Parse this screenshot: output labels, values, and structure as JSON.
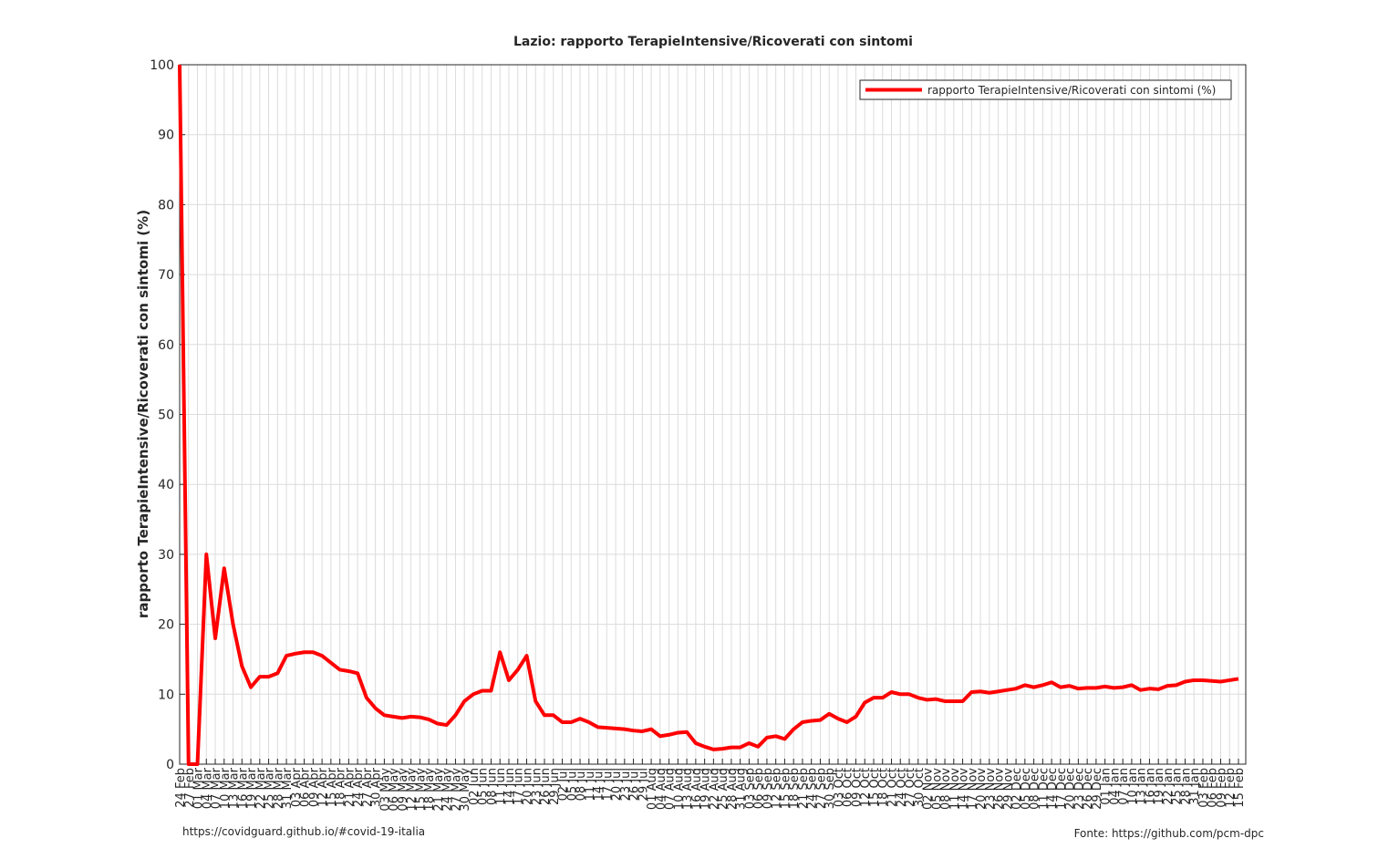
{
  "chart_data": {
    "type": "line",
    "title": "Lazio: rapporto TerapieIntensive/Ricoverati con sintomi",
    "y_label": "rapporto TerapieIntensive/Ricoverati con sintomi (%)",
    "footer_left": "https://covidguard.github.io/#covid-19-italia",
    "footer_right": "Fonte: https://github.com/pcm-dpc",
    "legend_position": "upper right",
    "grid": true,
    "ylim": [
      0,
      100
    ],
    "yticks": [
      0,
      10,
      20,
      30,
      40,
      50,
      60,
      70,
      80,
      90,
      100
    ],
    "categories": [
      "24 Feb",
      "27 Feb",
      "01 Mar",
      "04 Mar",
      "07 Mar",
      "10 Mar",
      "13 Mar",
      "16 Mar",
      "19 Mar",
      "22 Mar",
      "25 Mar",
      "28 Mar",
      "31 Mar",
      "03 Apr",
      "06 Apr",
      "09 Apr",
      "12 Apr",
      "15 Apr",
      "18 Apr",
      "21 Apr",
      "24 Apr",
      "27 Apr",
      "30 Apr",
      "03 May",
      "06 May",
      "09 May",
      "12 May",
      "15 May",
      "18 May",
      "21 May",
      "24 May",
      "27 May",
      "30 May",
      "02 Jun",
      "05 Jun",
      "08 Jun",
      "11 Jun",
      "14 Jun",
      "17 Jun",
      "20 Jun",
      "23 Jun",
      "26 Jun",
      "29 Jun",
      "02 Jul",
      "05 Jul",
      "08 Jul",
      "11 Jul",
      "14 Jul",
      "17 Jul",
      "20 Jul",
      "23 Jul",
      "26 Jul",
      "29 Jul",
      "01 Aug",
      "04 Aug",
      "07 Aug",
      "10 Aug",
      "13 Aug",
      "16 Aug",
      "19 Aug",
      "22 Aug",
      "25 Aug",
      "28 Aug",
      "31 Aug",
      "03 Sep",
      "06 Sep",
      "09 Sep",
      "12 Sep",
      "15 Sep",
      "18 Sep",
      "21 Sep",
      "24 Sep",
      "27 Sep",
      "30 Sep",
      "03 Oct",
      "06 Oct",
      "09 Oct",
      "12 Oct",
      "15 Oct",
      "18 Oct",
      "21 Oct",
      "24 Oct",
      "27 Oct",
      "30 Oct",
      "02 Nov",
      "05 Nov",
      "08 Nov",
      "11 Nov",
      "14 Nov",
      "17 Nov",
      "20 Nov",
      "23 Nov",
      "26 Nov",
      "29 Nov",
      "02 Dec",
      "05 Dec",
      "08 Dec",
      "11 Dec",
      "14 Dec",
      "17 Dec",
      "20 Dec",
      "23 Dec",
      "26 Dec",
      "29 Dec",
      "01 Jan",
      "04 Jan",
      "07 Jan",
      "10 Jan",
      "13 Jan",
      "16 Jan",
      "19 Jan",
      "22 Jan",
      "25 Jan",
      "28 Jan",
      "31 Jan",
      "03 Feb",
      "06 Feb",
      "09 Feb",
      "12 Feb",
      "15 Feb"
    ],
    "series": [
      {
        "name": "rapporto TerapieIntensive/Ricoverati con sintomi (%)",
        "color": "#ff0000",
        "values": [
          100,
          0,
          0,
          30,
          18,
          28,
          20,
          14,
          11,
          12.5,
          12.5,
          13,
          15.5,
          15.8,
          16,
          16,
          15.5,
          14.5,
          13.5,
          13.3,
          13,
          9.5,
          8,
          7,
          6.8,
          6.6,
          6.8,
          6.7,
          6.4,
          5.8,
          5.6,
          7,
          9,
          10,
          10.5,
          10.5,
          16,
          12,
          13.5,
          15.5,
          9,
          7,
          7,
          6,
          6,
          6.5,
          6,
          5.3,
          5.2,
          5.1,
          5,
          4.8,
          4.7,
          5,
          4,
          4.2,
          4.5,
          4.6,
          3,
          2.5,
          2.1,
          2.2,
          2.4,
          2.4,
          3,
          2.5,
          3.8,
          4,
          3.6,
          5,
          6,
          6.2,
          6.3,
          7.2,
          6.5,
          6,
          6.8,
          8.8,
          9.5,
          9.5,
          10.3,
          10,
          10,
          9.5,
          9.2,
          9.3,
          9,
          9,
          9,
          10.3,
          10.4,
          10.2,
          10.4,
          10.6,
          10.8,
          11.3,
          11,
          11.3,
          11.7,
          11,
          11.2,
          10.8,
          10.9,
          10.9,
          11.1,
          10.9,
          11,
          11.3,
          10.6,
          10.8,
          10.7,
          11.2,
          11.3,
          11.8,
          12,
          12,
          11.9,
          11.8,
          12,
          12.2
        ]
      }
    ]
  }
}
